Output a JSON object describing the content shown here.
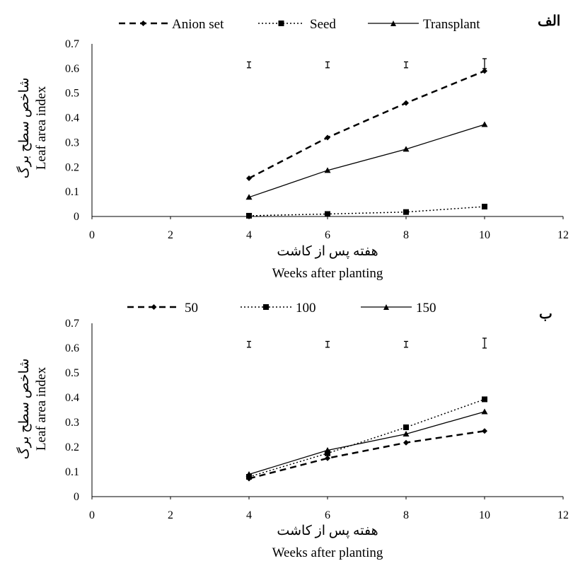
{
  "chart_data": [
    {
      "type": "line",
      "panel_label": "الف",
      "xlabel_fa": "هفته پس از کاشت",
      "xlabel": "Weeks after planting",
      "ylabel_fa": "شاخص سطح برگ",
      "ylabel": "Leaf area index",
      "xlim": [
        0,
        12
      ],
      "ylim": [
        0,
        0.7
      ],
      "x_ticks": [
        "0",
        "2",
        "4",
        "6",
        "8",
        "10",
        "12"
      ],
      "y_ticks": [
        "0",
        "0.1",
        "0.2",
        "0.3",
        "0.4",
        "0.5",
        "0.6",
        "0.7"
      ],
      "legend_position": "top",
      "grid": false,
      "x": [
        4,
        6,
        8,
        10
      ],
      "series": [
        {
          "name": "Anion set",
          "style": "dashed",
          "marker": "diamond",
          "values": [
            0.155,
            0.32,
            0.46,
            0.59
          ]
        },
        {
          "name": "Seed",
          "style": "dotted",
          "marker": "square",
          "values": [
            0.003,
            0.01,
            0.018,
            0.04
          ]
        },
        {
          "name": "Transplant",
          "style": "solid",
          "marker": "triangle",
          "values": [
            0.078,
            0.187,
            0.273,
            0.373
          ]
        }
      ],
      "error_bars": [
        {
          "x": 4,
          "center": 0.615,
          "half_width": 0.012
        },
        {
          "x": 6,
          "center": 0.615,
          "half_width": 0.012
        },
        {
          "x": 8,
          "center": 0.615,
          "half_width": 0.012
        },
        {
          "x": 10,
          "center": 0.62,
          "half_width": 0.02
        }
      ]
    },
    {
      "type": "line",
      "panel_label": "ب",
      "xlabel_fa": "هفته پس از کاشت",
      "xlabel": "Weeks after planting",
      "ylabel_fa": "شاخص سطح برگ",
      "ylabel": "Leaf area index",
      "xlim": [
        0,
        12
      ],
      "ylim": [
        0,
        0.7
      ],
      "x_ticks": [
        "0",
        "2",
        "4",
        "6",
        "8",
        "10",
        "12"
      ],
      "y_ticks": [
        "0",
        "0.1",
        "0.2",
        "0.3",
        "0.4",
        "0.5",
        "0.6",
        "0.7"
      ],
      "legend_position": "top",
      "grid": false,
      "x": [
        4,
        6,
        8,
        10
      ],
      "series": [
        {
          "name": "50",
          "style": "dashed",
          "marker": "diamond",
          "values": [
            0.073,
            0.155,
            0.218,
            0.265
          ]
        },
        {
          "name": "100",
          "style": "dotted",
          "marker": "square",
          "values": [
            0.08,
            0.175,
            0.28,
            0.393
          ]
        },
        {
          "name": "150",
          "style": "solid",
          "marker": "triangle",
          "values": [
            0.09,
            0.187,
            0.253,
            0.343
          ]
        }
      ],
      "error_bars": [
        {
          "x": 4,
          "center": 0.615,
          "half_width": 0.012
        },
        {
          "x": 6,
          "center": 0.615,
          "half_width": 0.012
        },
        {
          "x": 8,
          "center": 0.615,
          "half_width": 0.012
        },
        {
          "x": 10,
          "center": 0.62,
          "half_width": 0.02
        }
      ]
    }
  ]
}
